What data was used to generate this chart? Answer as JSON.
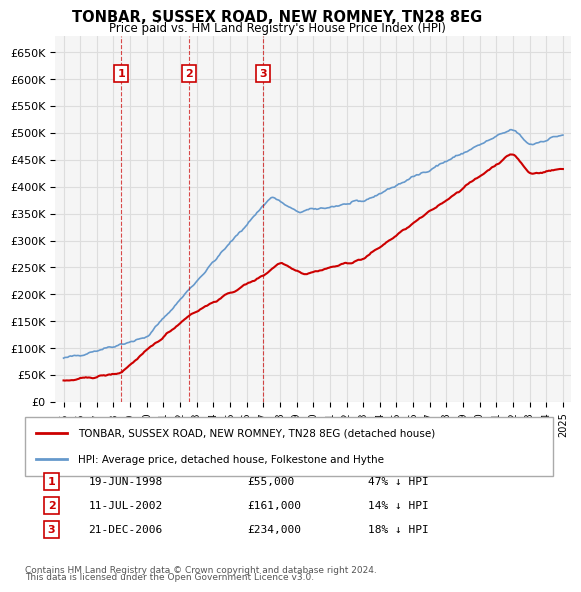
{
  "title": "TONBAR, SUSSEX ROAD, NEW ROMNEY, TN28 8EG",
  "subtitle": "Price paid vs. HM Land Registry's House Price Index (HPI)",
  "legend_line1": "TONBAR, SUSSEX ROAD, NEW ROMNEY, TN28 8EG (detached house)",
  "legend_line2": "HPI: Average price, detached house, Folkestone and Hythe",
  "footnote1": "Contains HM Land Registry data © Crown copyright and database right 2024.",
  "footnote2": "This data is licensed under the Open Government Licence v3.0.",
  "transactions": [
    {
      "num": 1,
      "date": "19-JUN-1998",
      "price": 55000,
      "hpi_rel": "47% ↓ HPI",
      "x_year": 1998.46
    },
    {
      "num": 2,
      "date": "11-JUL-2002",
      "price": 161000,
      "hpi_rel": "14% ↓ HPI",
      "x_year": 2002.53
    },
    {
      "num": 3,
      "date": "21-DEC-2006",
      "price": 234000,
      "hpi_rel": "18% ↓ HPI",
      "x_year": 2006.97
    }
  ],
  "property_color": "#cc0000",
  "hpi_color": "#6699cc",
  "grid_color": "#dddddd",
  "background_color": "#ffffff",
  "plot_bg_color": "#f5f5f5",
  "ylim": [
    0,
    680000
  ],
  "yticks": [
    0,
    50000,
    100000,
    150000,
    200000,
    250000,
    300000,
    350000,
    400000,
    450000,
    500000,
    550000,
    600000,
    650000
  ],
  "xlim_start": 1994.5,
  "xlim_end": 2025.5
}
